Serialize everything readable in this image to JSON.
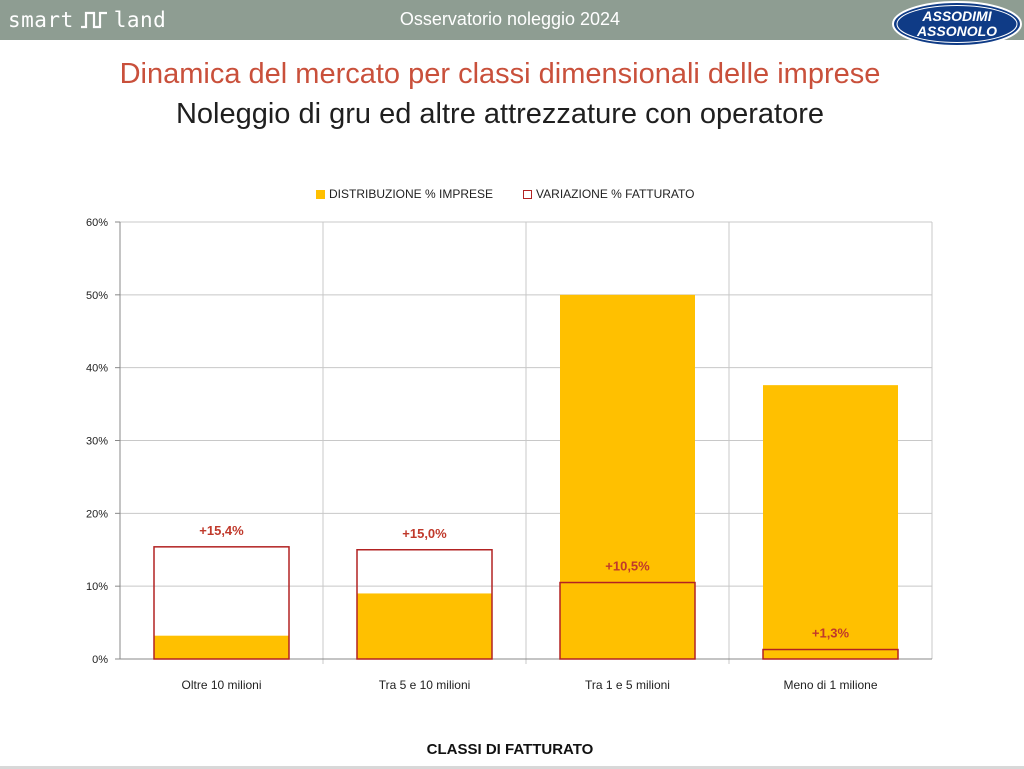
{
  "header": {
    "brand": "smart",
    "brand_suffix": "land",
    "title": "Osservatorio noleggio 2024",
    "logo_line1": "ASSODIMI",
    "logo_line2": "ASSONOLO",
    "bar_color": "#8e9d92",
    "logo_color": "#0f3b86"
  },
  "titles": {
    "main": "Dinamica del mercato per classi dimensionali delle imprese",
    "sub": "Noleggio di gru ed altre attrezzature con operatore",
    "main_color": "#c9503b"
  },
  "chart_data": {
    "type": "bar",
    "categories": [
      "Oltre 10 milioni",
      "Tra 5 e 10 milioni",
      "Tra 1 e 5 milioni",
      "Meno di 1 milione"
    ],
    "series": [
      {
        "name": "DISTRIBUZIONE % IMPRESE",
        "values": [
          3.2,
          9.0,
          50.0,
          37.6
        ],
        "color": "#ffc000",
        "style": "filled"
      },
      {
        "name": "VARIAZIONE % FATTURATO",
        "values": [
          15.4,
          15.0,
          10.5,
          1.3
        ],
        "color": "#b22222",
        "style": "outline",
        "labels": [
          "+15,4%",
          "+15,0%",
          "+10,5%",
          "+1,3%"
        ]
      }
    ],
    "ylim": [
      0,
      60
    ],
    "yticks": [
      "0%",
      "10%",
      "20%",
      "30%",
      "40%",
      "50%",
      "60%"
    ],
    "xlabel": "CLASSI DI FATTURATO",
    "ylabel": "",
    "grid": true,
    "legend_position": "top"
  }
}
